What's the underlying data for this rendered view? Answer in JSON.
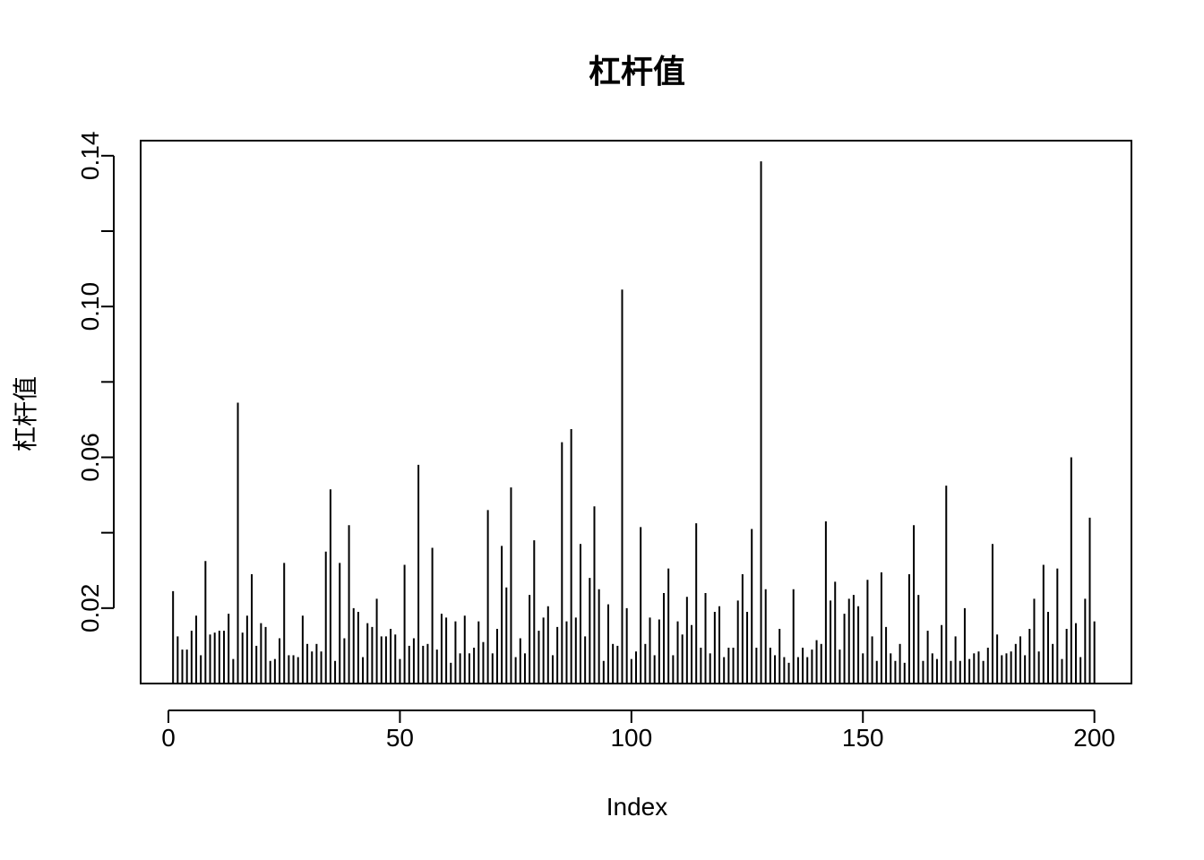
{
  "chart_data": {
    "type": "bar",
    "subtype": "histogram-spikes",
    "title": "杠杆值",
    "xlabel": "Index",
    "ylabel": "杠杆值",
    "xlim": [
      -6,
      208
    ],
    "ylim": [
      0.0,
      0.144
    ],
    "x_ticks": [
      0,
      50,
      100,
      150,
      200
    ],
    "x_tick_labels": [
      "0",
      "50",
      "100",
      "150",
      "200"
    ],
    "y_ticks": [
      0.02,
      0.04,
      0.06,
      0.08,
      0.1,
      0.12,
      0.14
    ],
    "y_tick_labels": [
      "0.02",
      "",
      "0.06",
      "",
      "0.10",
      "",
      "0.14"
    ],
    "grid": false,
    "baseline": 0.0,
    "x": [
      1,
      2,
      3,
      4,
      5,
      6,
      7,
      8,
      9,
      10,
      11,
      12,
      13,
      14,
      15,
      16,
      17,
      18,
      19,
      20,
      21,
      22,
      23,
      24,
      25,
      26,
      27,
      28,
      29,
      30,
      31,
      32,
      33,
      34,
      35,
      36,
      37,
      38,
      39,
      40,
      41,
      42,
      43,
      44,
      45,
      46,
      47,
      48,
      49,
      50,
      51,
      52,
      53,
      54,
      55,
      56,
      57,
      58,
      59,
      60,
      61,
      62,
      63,
      64,
      65,
      66,
      67,
      68,
      69,
      70,
      71,
      72,
      73,
      74,
      75,
      76,
      77,
      78,
      79,
      80,
      81,
      82,
      83,
      84,
      85,
      86,
      87,
      88,
      89,
      90,
      91,
      92,
      93,
      94,
      95,
      96,
      97,
      98,
      99,
      100,
      101,
      102,
      103,
      104,
      105,
      106,
      107,
      108,
      109,
      110,
      111,
      112,
      113,
      114,
      115,
      116,
      117,
      118,
      119,
      120,
      121,
      122,
      123,
      124,
      125,
      126,
      127,
      128,
      129,
      130,
      131,
      132,
      133,
      134,
      135,
      136,
      137,
      138,
      139,
      140,
      141,
      142,
      143,
      144,
      145,
      146,
      147,
      148,
      149,
      150,
      151,
      152,
      153,
      154,
      155,
      156,
      157,
      158,
      159,
      160,
      161,
      162,
      163,
      164,
      165,
      166,
      167,
      168,
      169,
      170,
      171,
      172,
      173,
      174,
      175,
      176,
      177,
      178,
      179,
      180,
      181,
      182,
      183,
      184,
      185,
      186,
      187,
      188,
      189,
      190,
      191,
      192,
      193,
      194,
      195,
      196,
      197,
      198,
      199,
      200
    ],
    "values": [
      0.0245,
      0.0125,
      0.009,
      0.009,
      0.014,
      0.018,
      0.0075,
      0.0325,
      0.013,
      0.0135,
      0.014,
      0.014,
      0.0185,
      0.0065,
      0.0745,
      0.0135,
      0.018,
      0.029,
      0.01,
      0.016,
      0.015,
      0.006,
      0.0065,
      0.012,
      0.032,
      0.0075,
      0.0075,
      0.007,
      0.018,
      0.0105,
      0.0085,
      0.0105,
      0.0085,
      0.035,
      0.0515,
      0.006,
      0.032,
      0.012,
      0.042,
      0.02,
      0.019,
      0.007,
      0.016,
      0.015,
      0.0225,
      0.0125,
      0.0125,
      0.0145,
      0.013,
      0.0065,
      0.0315,
      0.01,
      0.012,
      0.058,
      0.01,
      0.0105,
      0.036,
      0.009,
      0.0185,
      0.0175,
      0.0055,
      0.0165,
      0.008,
      0.018,
      0.008,
      0.0095,
      0.0165,
      0.011,
      0.046,
      0.008,
      0.0145,
      0.0365,
      0.0255,
      0.052,
      0.007,
      0.012,
      0.008,
      0.0235,
      0.038,
      0.014,
      0.0175,
      0.0205,
      0.0075,
      0.015,
      0.064,
      0.0165,
      0.0675,
      0.0175,
      0.037,
      0.0125,
      0.028,
      0.047,
      0.025,
      0.006,
      0.021,
      0.0105,
      0.01,
      0.1045,
      0.02,
      0.0065,
      0.0085,
      0.0415,
      0.0105,
      0.0175,
      0.0075,
      0.017,
      0.024,
      0.0305,
      0.0075,
      0.0165,
      0.013,
      0.023,
      0.0155,
      0.0425,
      0.0095,
      0.024,
      0.008,
      0.019,
      0.0205,
      0.007,
      0.0095,
      0.0095,
      0.022,
      0.029,
      0.019,
      0.041,
      0.0095,
      0.1385,
      0.025,
      0.0095,
      0.0075,
      0.0145,
      0.007,
      0.0055,
      0.025,
      0.007,
      0.0095,
      0.007,
      0.009,
      0.0115,
      0.0105,
      0.043,
      0.022,
      0.027,
      0.009,
      0.0185,
      0.0225,
      0.0235,
      0.0205,
      0.008,
      0.0275,
      0.0125,
      0.006,
      0.0295,
      0.015,
      0.008,
      0.006,
      0.0105,
      0.0055,
      0.029,
      0.042,
      0.0235,
      0.006,
      0.014,
      0.008,
      0.0065,
      0.0155,
      0.0525,
      0.006,
      0.0125,
      0.006,
      0.02,
      0.0065,
      0.008,
      0.0085,
      0.006,
      0.0095,
      0.037,
      0.013,
      0.0075,
      0.008,
      0.0085,
      0.0105,
      0.0125,
      0.0075,
      0.0145,
      0.0225,
      0.0085,
      0.0315,
      0.019,
      0.0105,
      0.0305,
      0.0065,
      0.0145,
      0.06,
      0.016,
      0.007,
      0.0225,
      0.044,
      0.0165
    ]
  }
}
